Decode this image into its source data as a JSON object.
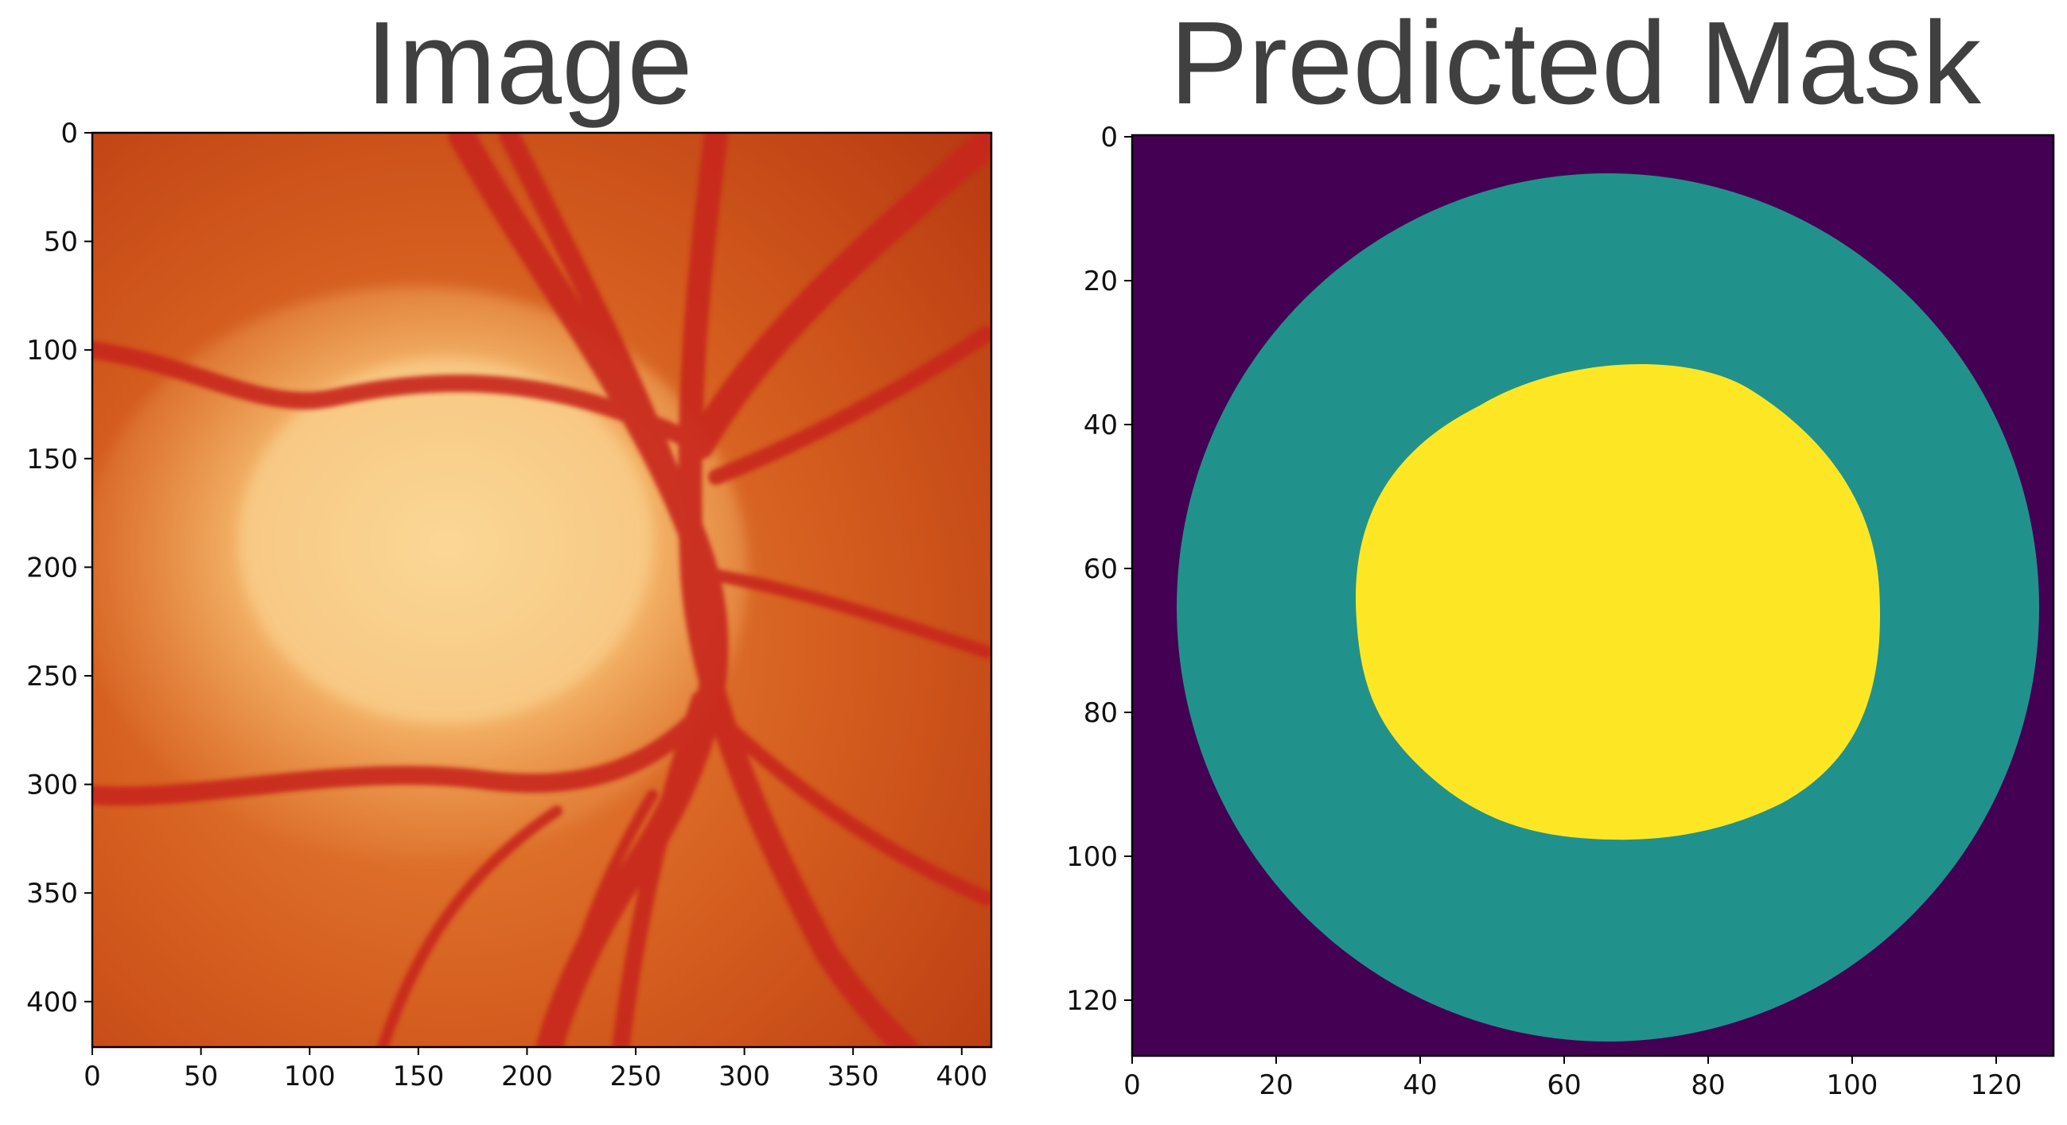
{
  "titles": {
    "left": "Image",
    "right": "Predicted Mask"
  },
  "image_panel": {
    "description": "retinal fundus photograph of optic disc",
    "x_ticks": [
      "0",
      "50",
      "100",
      "150",
      "200",
      "250",
      "300",
      "350",
      "400"
    ],
    "y_ticks": [
      "0",
      "50",
      "100",
      "150",
      "200",
      "250",
      "300",
      "350",
      "400"
    ],
    "colors": {
      "background": "#c94a18",
      "disc": "#f6c27a",
      "vessel": "#c8281c"
    }
  },
  "mask_panel": {
    "x_ticks": [
      "0",
      "20",
      "40",
      "60",
      "80",
      "100",
      "120"
    ],
    "y_ticks": [
      "0",
      "20",
      "40",
      "60",
      "80",
      "100",
      "120"
    ],
    "colors": {
      "background": "#440154",
      "disc": "#21918c",
      "cup": "#fde725"
    }
  }
}
